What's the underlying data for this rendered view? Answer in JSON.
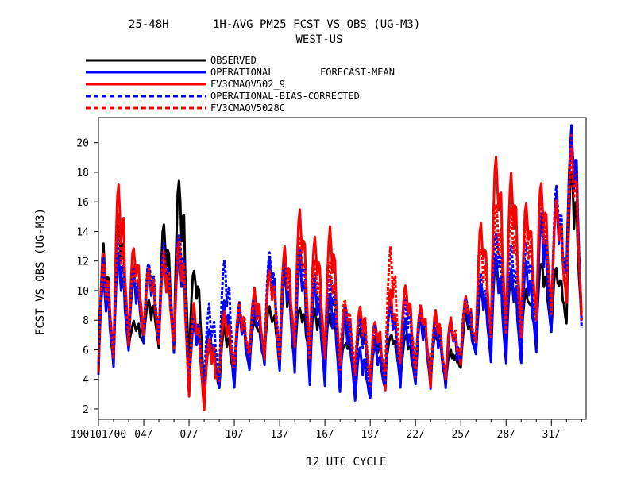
{
  "chart_data": {
    "type": "line",
    "title_left": "25-48H",
    "title_main": "1H-AVG PM25 FCST VS OBS (UG-M3)",
    "subtitle": "WEST-US",
    "legend_note": "FORECAST-MEAN",
    "xlabel": "12 UTC CYCLE",
    "ylabel": "FCST VS OBS (UG-M3)",
    "xlim": [
      0,
      32.3
    ],
    "ylim": [
      1.3,
      21.7
    ],
    "yticks": [
      2,
      4,
      6,
      8,
      10,
      12,
      14,
      16,
      18,
      20
    ],
    "xticks": [
      {
        "x": 0,
        "label": "190101/00"
      },
      {
        "x": 3,
        "label": "04/"
      },
      {
        "x": 6,
        "label": "07/"
      },
      {
        "x": 9,
        "label": "10/"
      },
      {
        "x": 12,
        "label": "13/"
      },
      {
        "x": 15,
        "label": "16/"
      },
      {
        "x": 18,
        "label": "19/"
      },
      {
        "x": 21,
        "label": "22/"
      },
      {
        "x": 24,
        "label": "25/"
      },
      {
        "x": 27,
        "label": "28/"
      },
      {
        "x": 30,
        "label": "31/"
      }
    ],
    "grid": false,
    "legend_position": "top-left",
    "daily_points_day": [
      0,
      1,
      2,
      3,
      4,
      5,
      6,
      7,
      8,
      9,
      10,
      11,
      12,
      13,
      14,
      15,
      16,
      17,
      18,
      19,
      20,
      21,
      22,
      23,
      24,
      25,
      26,
      27,
      28,
      29,
      30,
      31,
      32
    ],
    "series": [
      {
        "name": "OBSERVED",
        "color": "#000000",
        "dash": false,
        "peaks": [
          13.0,
          15.3,
          8.0,
          9.5,
          14.6,
          17.5,
          11.5,
          6.5,
          7.5,
          8.5,
          8.0,
          9.0,
          11.0,
          9.0,
          9.0,
          8.5,
          6.5,
          7.5,
          7.0,
          7.0,
          7.0,
          8.5,
          7.0,
          6.0,
          8.5,
          10.0,
          12.0,
          11.0,
          10.0,
          12.0,
          11.5,
          18.0,
          9.0
        ],
        "troughs": [
          4.3,
          5.0,
          6.0,
          6.5,
          6.0,
          6.0,
          5.0,
          3.5,
          3.5,
          4.5,
          5.0,
          5.5,
          5.5,
          5.5,
          5.0,
          5.0,
          4.5,
          4.5,
          4.0,
          4.5,
          4.0,
          4.0,
          4.5,
          4.0,
          5.0,
          6.0,
          6.5,
          6.0,
          6.5,
          7.0,
          7.5,
          8.0,
          8.0
        ]
      },
      {
        "name": "OPERATIONAL",
        "color": "#0000ff",
        "dash": false,
        "peaks": [
          11.0,
          12.5,
          11.0,
          11.5,
          12.0,
          12.5,
          8.0,
          7.5,
          9.5,
          8.5,
          9.0,
          12.0,
          11.5,
          12.5,
          10.5,
          10.0,
          8.5,
          6.0,
          6.5,
          9.5,
          8.0,
          8.5,
          7.5,
          7.5,
          9.0,
          10.5,
          12.5,
          11.5,
          12.0,
          15.0,
          16.5,
          21.0,
          9.0
        ],
        "troughs": [
          4.5,
          5.0,
          6.0,
          6.5,
          6.5,
          6.0,
          3.0,
          2.5,
          3.5,
          3.5,
          4.5,
          5.0,
          4.5,
          4.5,
          3.5,
          3.5,
          3.0,
          2.5,
          2.7,
          3.5,
          3.5,
          3.5,
          3.5,
          3.5,
          5.0,
          5.5,
          5.0,
          5.0,
          5.0,
          6.0,
          7.0,
          11.0,
          8.0
        ]
      },
      {
        "name": "FV3CMAQV502_9",
        "color": "#ff0000",
        "dash": false,
        "peaks": [
          12.5,
          17.4,
          13.0,
          11.5,
          12.0,
          13.5,
          9.0,
          6.5,
          8.5,
          9.0,
          10.0,
          11.5,
          13.0,
          15.5,
          13.5,
          14.2,
          9.0,
          9.0,
          8.0,
          10.0,
          10.5,
          9.0,
          8.5,
          8.0,
          9.5,
          14.5,
          19.2,
          18.0,
          16.0,
          17.5,
          16.0,
          20.7,
          9.0
        ],
        "troughs": [
          4.5,
          5.5,
          6.5,
          7.0,
          6.5,
          6.0,
          3.0,
          1.8,
          4.0,
          4.5,
          5.5,
          5.5,
          5.5,
          6.0,
          5.5,
          5.5,
          4.5,
          4.0,
          3.5,
          3.5,
          5.0,
          4.0,
          3.5,
          4.0,
          5.0,
          6.5,
          7.0,
          7.0,
          7.0,
          8.0,
          8.5,
          9.0,
          8.5
        ]
      },
      {
        "name": "OPERATIONAL-BIAS-CORRECTED",
        "color": "#0000ff",
        "dash": true,
        "peaks": [
          12.0,
          13.5,
          11.5,
          12.0,
          13.0,
          14.0,
          8.5,
          9.0,
          12.0,
          9.0,
          9.5,
          12.5,
          12.0,
          13.0,
          11.0,
          11.0,
          9.0,
          8.0,
          7.5,
          9.0,
          9.5,
          8.5,
          8.0,
          8.0,
          9.5,
          11.0,
          14.0,
          13.0,
          13.5,
          15.5,
          17.0,
          20.5,
          9.0
        ],
        "troughs": [
          5.0,
          5.5,
          6.5,
          7.0,
          7.0,
          6.5,
          4.0,
          3.5,
          4.0,
          4.0,
          5.0,
          5.5,
          5.5,
          5.5,
          4.5,
          4.5,
          4.0,
          3.5,
          3.0,
          3.5,
          4.0,
          4.0,
          4.0,
          4.0,
          5.5,
          6.0,
          6.0,
          6.0,
          6.0,
          7.0,
          8.0,
          11.0,
          7.5
        ]
      },
      {
        "name": "FV3CMAQV5028C",
        "color": "#ff0000",
        "dash": true,
        "peaks": [
          12.0,
          15.0,
          12.0,
          11.5,
          12.5,
          13.5,
          8.5,
          7.0,
          8.5,
          9.0,
          9.5,
          11.5,
          12.5,
          13.5,
          12.0,
          12.0,
          9.5,
          9.0,
          7.5,
          12.7,
          10.0,
          9.0,
          8.5,
          8.0,
          9.5,
          13.0,
          16.0,
          15.5,
          15.0,
          16.5,
          16.0,
          19.5,
          9.0
        ],
        "troughs": [
          5.0,
          5.5,
          6.5,
          7.0,
          7.0,
          6.5,
          3.5,
          2.5,
          4.5,
          5.0,
          5.5,
          5.5,
          5.5,
          6.0,
          5.5,
          5.5,
          5.0,
          4.5,
          4.0,
          4.5,
          5.0,
          4.5,
          4.0,
          4.0,
          5.5,
          6.5,
          7.0,
          7.0,
          7.0,
          8.0,
          8.5,
          9.5,
          8.0
        ]
      }
    ]
  }
}
